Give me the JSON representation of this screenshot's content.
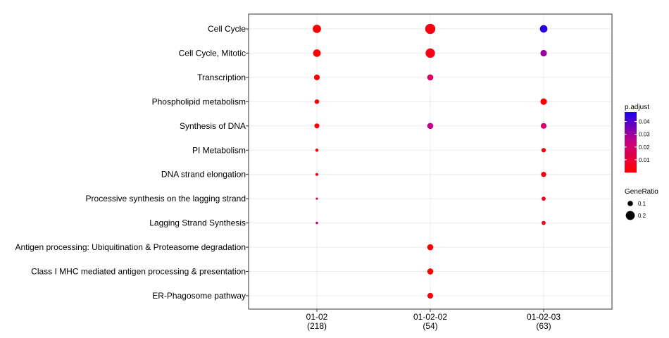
{
  "chart_data": {
    "type": "scatter",
    "x_categories": [
      {
        "label": "01-02",
        "count": "(218)"
      },
      {
        "label": "01-02-02",
        "count": "(54)"
      },
      {
        "label": "01-02-03",
        "count": "(63)"
      }
    ],
    "y_categories": [
      "Cell Cycle",
      "Cell Cycle, Mitotic",
      "Transcription",
      "Phospholipid metabolism",
      "Synthesis of DNA",
      "PI Metabolism",
      "DNA strand elongation",
      "Processive synthesis on the lagging strand",
      "Lagging Strand Synthesis",
      "Antigen processing: Ubiquitination & Proteasome degradation",
      "Class I MHC mediated antigen processing & presentation",
      "ER-Phagosome pathway"
    ],
    "points": [
      {
        "x": "01-02",
        "y": "Cell Cycle",
        "gene_ratio": 0.18,
        "p_adjust": 0.0005
      },
      {
        "x": "01-02",
        "y": "Cell Cycle, Mitotic",
        "gene_ratio": 0.16,
        "p_adjust": 0.0005
      },
      {
        "x": "01-02",
        "y": "Transcription",
        "gene_ratio": 0.11,
        "p_adjust": 0.001
      },
      {
        "x": "01-02",
        "y": "Phospholipid metabolism",
        "gene_ratio": 0.08,
        "p_adjust": 0.001
      },
      {
        "x": "01-02",
        "y": "Synthesis of DNA",
        "gene_ratio": 0.09,
        "p_adjust": 0.001
      },
      {
        "x": "01-02",
        "y": "PI Metabolism",
        "gene_ratio": 0.04,
        "p_adjust": 0.002
      },
      {
        "x": "01-02",
        "y": "DNA strand elongation",
        "gene_ratio": 0.035,
        "p_adjust": 0.005
      },
      {
        "x": "01-02",
        "y": "Processive synthesis on the lagging strand",
        "gene_ratio": 0.015,
        "p_adjust": 0.012
      },
      {
        "x": "01-02",
        "y": "Lagging Strand Synthesis",
        "gene_ratio": 0.02,
        "p_adjust": 0.025
      },
      {
        "x": "01-02-02",
        "y": "Cell Cycle",
        "gene_ratio": 0.23,
        "p_adjust": 0.003
      },
      {
        "x": "01-02-02",
        "y": "Cell Cycle, Mitotic",
        "gene_ratio": 0.21,
        "p_adjust": 0.004
      },
      {
        "x": "01-02-02",
        "y": "Transcription",
        "gene_ratio": 0.12,
        "p_adjust": 0.018
      },
      {
        "x": "01-02-02",
        "y": "Synthesis of DNA",
        "gene_ratio": 0.12,
        "p_adjust": 0.025
      },
      {
        "x": "01-02-02",
        "y": "Antigen processing: Ubiquitination & Proteasome degradation",
        "gene_ratio": 0.12,
        "p_adjust": 0.001
      },
      {
        "x": "01-02-02",
        "y": "Class I MHC mediated antigen processing & presentation",
        "gene_ratio": 0.12,
        "p_adjust": 0.001
      },
      {
        "x": "01-02-02",
        "y": "ER-Phagosome pathway",
        "gene_ratio": 0.11,
        "p_adjust": 0.002
      },
      {
        "x": "01-02-03",
        "y": "Cell Cycle",
        "gene_ratio": 0.16,
        "p_adjust": 0.045
      },
      {
        "x": "01-02-03",
        "y": "Cell Cycle, Mitotic",
        "gene_ratio": 0.13,
        "p_adjust": 0.03
      },
      {
        "x": "01-02-03",
        "y": "Phospholipid metabolism",
        "gene_ratio": 0.13,
        "p_adjust": 0.001
      },
      {
        "x": "01-02-03",
        "y": "Synthesis of DNA",
        "gene_ratio": 0.11,
        "p_adjust": 0.02
      },
      {
        "x": "01-02-03",
        "y": "PI Metabolism",
        "gene_ratio": 0.075,
        "p_adjust": 0.002
      },
      {
        "x": "01-02-03",
        "y": "DNA strand elongation",
        "gene_ratio": 0.095,
        "p_adjust": 0.002
      },
      {
        "x": "01-02-03",
        "y": "Processive synthesis on the lagging strand",
        "gene_ratio": 0.065,
        "p_adjust": 0.005
      },
      {
        "x": "01-02-03",
        "y": "Lagging Strand Synthesis",
        "gene_ratio": 0.065,
        "p_adjust": 0.005
      }
    ],
    "color_legend": {
      "title": "p.adjust",
      "ticks": [
        {
          "value": 0.04,
          "label": "0.04"
        },
        {
          "value": 0.03,
          "label": "0.03"
        },
        {
          "value": 0.02,
          "label": "0.02"
        },
        {
          "value": 0.01,
          "label": "0.01"
        }
      ],
      "range": [
        0,
        0.0475
      ],
      "low_color": "#ff0000",
      "high_color": "#0000ff"
    },
    "size_legend": {
      "title": "GeneRatio",
      "entries": [
        {
          "value": 0.1,
          "label": "0.1"
        },
        {
          "value": 0.2,
          "label": "0.2"
        }
      ]
    },
    "grid": true,
    "legend_position": "right"
  }
}
